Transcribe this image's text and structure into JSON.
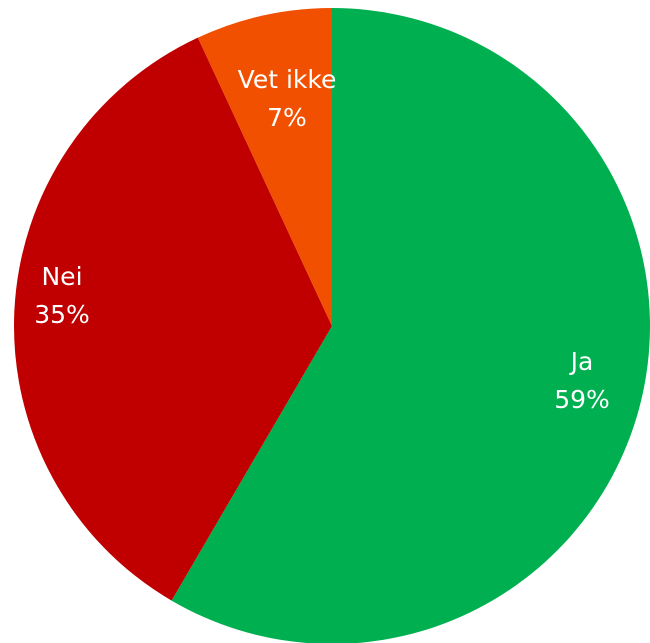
{
  "chart_data": {
    "type": "pie",
    "title": "",
    "start": "top",
    "direction": "clockwise",
    "slices": [
      {
        "name": "Ja",
        "value": 59,
        "label_pct": "59%",
        "color": "#00b050"
      },
      {
        "name": "Nei",
        "value": 35,
        "label_pct": "35%",
        "color": "#c00000"
      },
      {
        "name": "Vet ikke",
        "value": 7,
        "label_pct": "7%",
        "color": "#f05000"
      }
    ]
  }
}
